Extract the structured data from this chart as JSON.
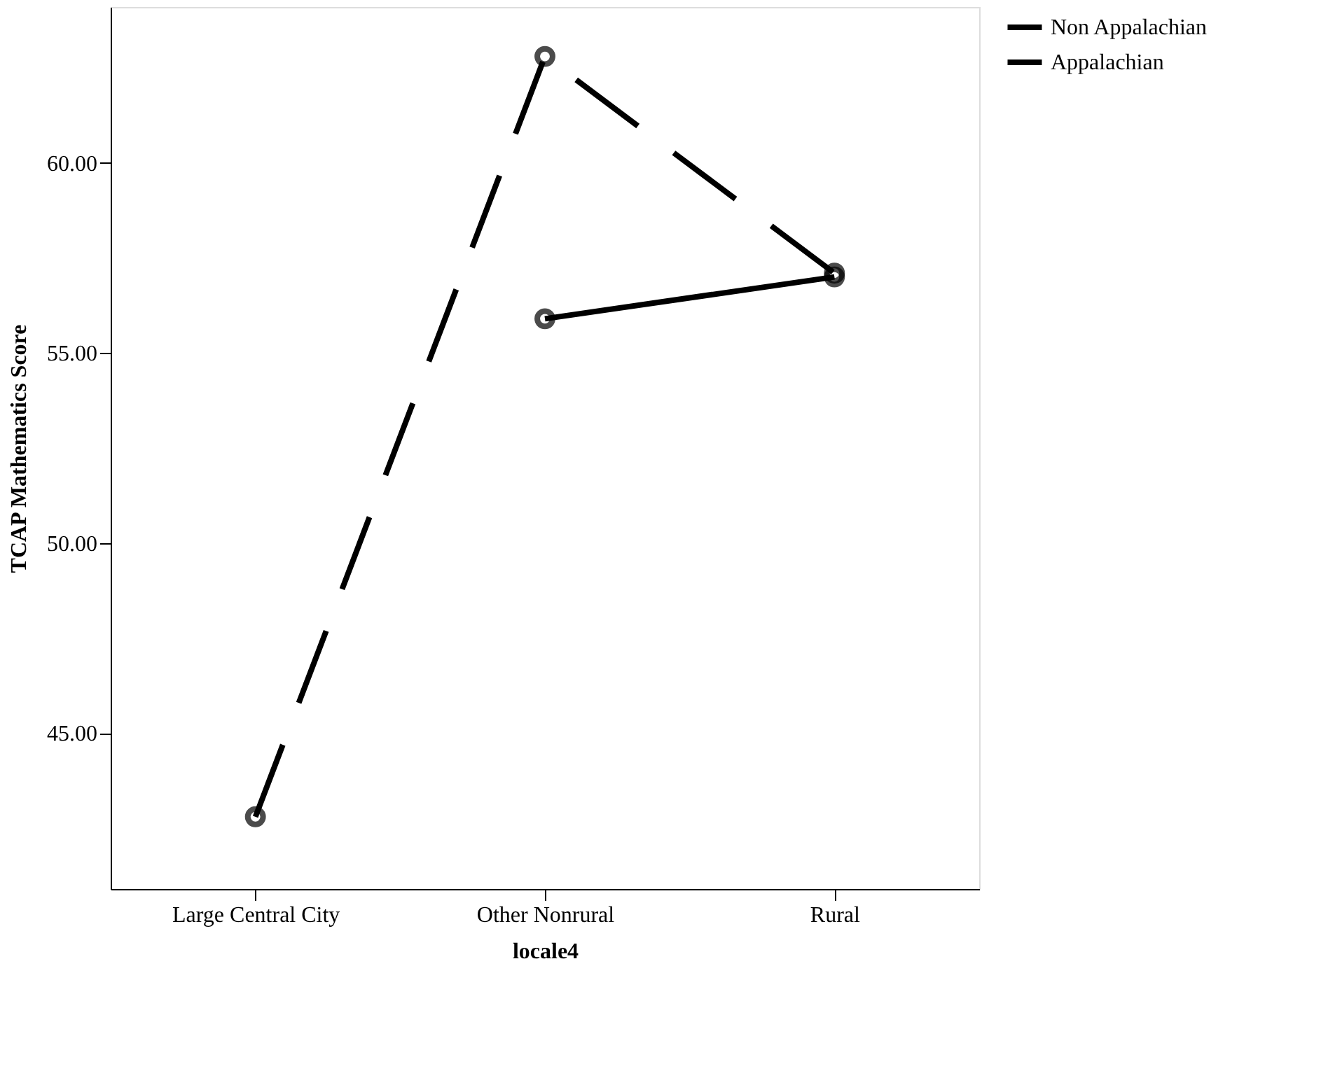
{
  "chart_data": {
    "type": "line",
    "xlabel": "locale4",
    "ylabel": "TCAP Mathematics Score",
    "categories": [
      "Large Central City",
      "Other Nonrural",
      "Rural"
    ],
    "series": [
      {
        "name": "Non Appalachian",
        "color": "#000000",
        "values": [
          42.8,
          62.8,
          57.1
        ],
        "line_style": "dashed"
      },
      {
        "name": "Appalachian",
        "color": "#000000",
        "values": [
          null,
          55.9,
          57.0
        ],
        "line_style": "solid"
      }
    ],
    "ylim": [
      40.9,
      64.1
    ],
    "yticks": [
      {
        "value": 45,
        "label": "45.00"
      },
      {
        "value": 50,
        "label": "50.00"
      },
      {
        "value": 55,
        "label": "55.00"
      },
      {
        "value": 60,
        "label": "60.00"
      }
    ],
    "grid": false,
    "legend": "top right",
    "marker": "circle"
  }
}
